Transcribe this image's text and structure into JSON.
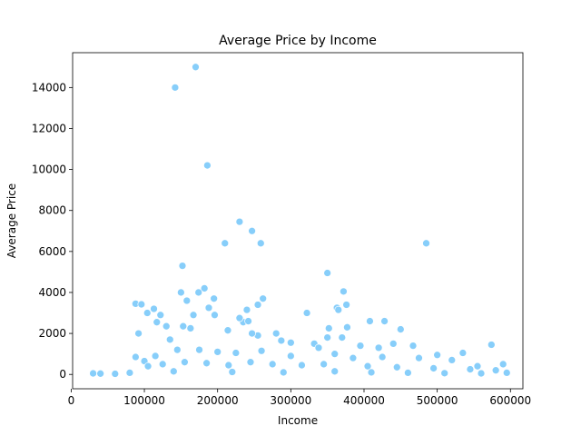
{
  "chart_data": {
    "type": "scatter",
    "title": "Average Price by Income",
    "xlabel": "Income",
    "ylabel": "Average Price",
    "xlim": [
      2000,
      617000
    ],
    "ylim": [
      -700,
      15700
    ],
    "xticks": [
      0,
      100000,
      200000,
      300000,
      400000,
      500000,
      600000
    ],
    "xtick_labels": [
      "0",
      "100000",
      "200000",
      "300000",
      "400000",
      "500000",
      "600000"
    ],
    "yticks": [
      0,
      2000,
      4000,
      6000,
      8000,
      10000,
      12000,
      14000
    ],
    "ytick_labels": [
      "0",
      "2000",
      "4000",
      "6000",
      "8000",
      "10000",
      "12000",
      "14000"
    ],
    "grid": false,
    "legend": "none",
    "marker_color": "#87CEFA",
    "marker_edge": "#ffffff",
    "series": [
      {
        "points": [
          [
            170000,
            15000
          ],
          [
            142000,
            14000
          ],
          [
            186000,
            10200
          ],
          [
            230000,
            7450
          ],
          [
            247000,
            7000
          ],
          [
            210000,
            6400
          ],
          [
            259000,
            6400
          ],
          [
            485000,
            6400
          ],
          [
            152000,
            5300
          ],
          [
            350000,
            4950
          ],
          [
            182000,
            4200
          ],
          [
            174000,
            4000
          ],
          [
            150000,
            4000
          ],
          [
            372000,
            4050
          ],
          [
            158000,
            3600
          ],
          [
            195000,
            3700
          ],
          [
            262000,
            3700
          ],
          [
            88000,
            3450
          ],
          [
            96000,
            3420
          ],
          [
            240000,
            3150
          ],
          [
            376000,
            3400
          ],
          [
            113000,
            3200
          ],
          [
            363000,
            3250
          ],
          [
            188000,
            3250
          ],
          [
            255000,
            3400
          ],
          [
            104000,
            3000
          ],
          [
            322000,
            3000
          ],
          [
            167000,
            2900
          ],
          [
            196000,
            2900
          ],
          [
            122000,
            2900
          ],
          [
            365000,
            3150
          ],
          [
            408000,
            2600
          ],
          [
            428000,
            2600
          ],
          [
            235000,
            2550
          ],
          [
            242000,
            2600
          ],
          [
            450000,
            2200
          ],
          [
            117000,
            2550
          ],
          [
            130000,
            2350
          ],
          [
            153000,
            2350
          ],
          [
            163000,
            2250
          ],
          [
            214000,
            2150
          ],
          [
            230000,
            2750
          ],
          [
            92000,
            2000
          ],
          [
            377000,
            2300
          ],
          [
            352000,
            2250
          ],
          [
            255000,
            1900
          ],
          [
            247000,
            2000
          ],
          [
            280000,
            2000
          ],
          [
            350000,
            1800
          ],
          [
            370000,
            1800
          ],
          [
            135000,
            1700
          ],
          [
            287000,
            1650
          ],
          [
            300000,
            1550
          ],
          [
            332000,
            1500
          ],
          [
            338000,
            1300
          ],
          [
            395000,
            1400
          ],
          [
            420000,
            1300
          ],
          [
            440000,
            1500
          ],
          [
            467000,
            1400
          ],
          [
            574000,
            1450
          ],
          [
            500000,
            950
          ],
          [
            535000,
            1050
          ],
          [
            88000,
            850
          ],
          [
            100000,
            650
          ],
          [
            115000,
            900
          ],
          [
            145000,
            1200
          ],
          [
            175000,
            1200
          ],
          [
            200000,
            1100
          ],
          [
            225000,
            1050
          ],
          [
            260000,
            1150
          ],
          [
            300000,
            900
          ],
          [
            360000,
            1000
          ],
          [
            385000,
            800
          ],
          [
            425000,
            850
          ],
          [
            475000,
            800
          ],
          [
            520000,
            700
          ],
          [
            555000,
            400
          ],
          [
            590000,
            500
          ],
          [
            105000,
            400
          ],
          [
            125000,
            500
          ],
          [
            155000,
            600
          ],
          [
            185000,
            550
          ],
          [
            215000,
            450
          ],
          [
            245000,
            600
          ],
          [
            275000,
            500
          ],
          [
            315000,
            450
          ],
          [
            345000,
            500
          ],
          [
            405000,
            400
          ],
          [
            445000,
            350
          ],
          [
            495000,
            300
          ],
          [
            545000,
            250
          ],
          [
            580000,
            200
          ],
          [
            30000,
            50
          ],
          [
            40000,
            40
          ],
          [
            60000,
            30
          ],
          [
            80000,
            80
          ],
          [
            140000,
            150
          ],
          [
            220000,
            120
          ],
          [
            290000,
            100
          ],
          [
            360000,
            150
          ],
          [
            410000,
            100
          ],
          [
            460000,
            80
          ],
          [
            510000,
            60
          ],
          [
            560000,
            50
          ],
          [
            595000,
            80
          ]
        ]
      }
    ]
  }
}
